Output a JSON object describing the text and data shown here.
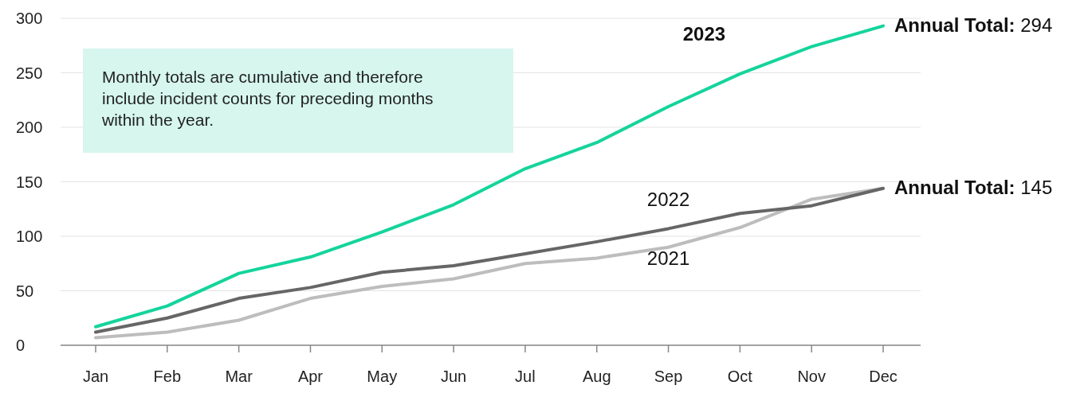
{
  "chart_data": {
    "type": "line",
    "categories": [
      "Jan",
      "Feb",
      "Mar",
      "Apr",
      "May",
      "Jun",
      "Jul",
      "Aug",
      "Sep",
      "Oct",
      "Nov",
      "Dec"
    ],
    "series": [
      {
        "name": "2021",
        "color": "#bdbdbd",
        "values": [
          7,
          12,
          23,
          43,
          54,
          61,
          75,
          80,
          90,
          108,
          134,
          144
        ]
      },
      {
        "name": "2022",
        "color": "#666666",
        "values": [
          12,
          25,
          43,
          53,
          67,
          73,
          84,
          95,
          107,
          121,
          128,
          144
        ]
      },
      {
        "name": "2023",
        "color": "#14d49c",
        "values": [
          17,
          36,
          66,
          81,
          104,
          129,
          162,
          186,
          219,
          249,
          274,
          293
        ]
      }
    ],
    "ylim": [
      0,
      300
    ],
    "yticks": [
      0,
      50,
      100,
      150,
      200,
      250,
      300
    ],
    "grid": "y",
    "marker": "none",
    "line_style": "solid",
    "annotations": [
      "Monthly totals are cumulative and therefore include incident counts for preceding months within the year.",
      {
        "text": "Annual Total: 294",
        "x": "Dec",
        "y": 294
      },
      {
        "text": "Annual Total: 145",
        "x": "Dec",
        "y": 145
      }
    ]
  }
}
